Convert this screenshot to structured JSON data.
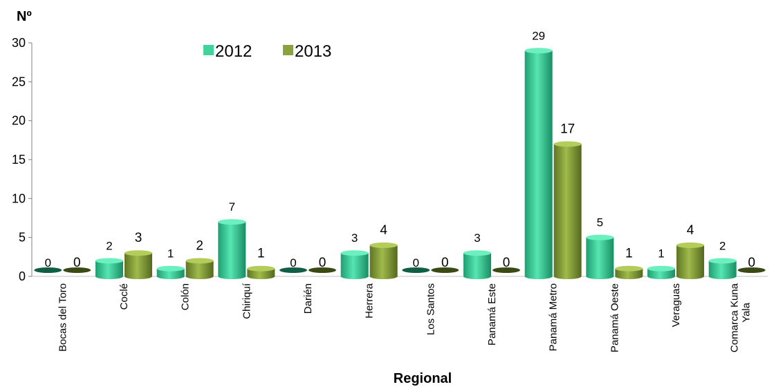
{
  "chart_data": {
    "type": "bar",
    "ylabel": "Nº",
    "xlabel": "Regional",
    "ylim": [
      0,
      30
    ],
    "yticks": [
      0,
      5,
      10,
      15,
      20,
      25,
      30
    ],
    "legend_position": "top-center",
    "categories": [
      "Bocas del Toro",
      "Coclé",
      "Colón",
      "Chiriquí",
      "Darién",
      "Herrera",
      "Los Santos",
      "Panamá Este",
      "Panamá Metro",
      "Panamá Oeste",
      "Veraguas",
      "Comarca Kuna Yala"
    ],
    "series": [
      {
        "name": "2012",
        "color": "#3fd49b",
        "values": [
          0,
          2,
          1,
          7,
          0,
          3,
          0,
          3,
          29,
          5,
          1,
          2
        ]
      },
      {
        "name": "2013",
        "color": "#8aa33c",
        "values": [
          0,
          3,
          2,
          1,
          0,
          4,
          0,
          0,
          17,
          1,
          4,
          0
        ]
      }
    ]
  }
}
